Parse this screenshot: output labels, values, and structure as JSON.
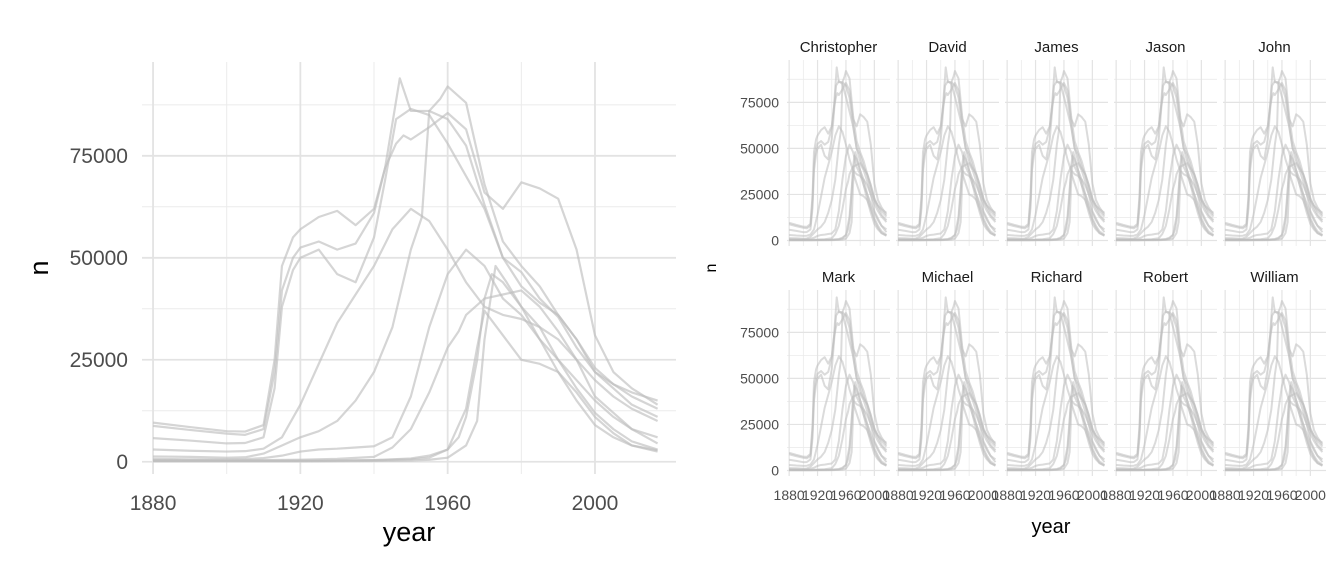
{
  "chart_data": [
    {
      "type": "line",
      "title": "",
      "xlabel": "year",
      "ylabel": "n",
      "xlim": [
        1877,
        2022
      ],
      "ylim": [
        -3000,
        98000
      ],
      "x_ticks": [
        1880,
        1920,
        1960,
        2000
      ],
      "x_tick_labels": [
        "1880",
        "1920",
        "1960",
        "2000"
      ],
      "y_ticks": [
        0,
        25000,
        50000,
        75000
      ],
      "y_tick_labels": [
        "0",
        "25000",
        "50000",
        "75000"
      ],
      "grid": true,
      "legend": "none",
      "line_color": "#bebebe",
      "series": [
        {
          "x": [
            1880,
            1890,
            1900,
            1905,
            1910,
            1913,
            1915,
            1918,
            1920,
            1925,
            1930,
            1935,
            1940,
            1943,
            1946,
            1948,
            1950,
            1955,
            1960,
            1965,
            1970,
            1975,
            1980,
            1985,
            1990,
            1995,
            2000,
            2005,
            2010,
            2017
          ],
          "values": [
            9600,
            8500,
            7500,
            7400,
            9000,
            25000,
            48000,
            55000,
            57000,
            60000,
            61500,
            58000,
            62000,
            72000,
            78000,
            80000,
            79000,
            82000,
            85500,
            81500,
            66000,
            62000,
            68500,
            67000,
            64500,
            52000,
            31000,
            22000,
            18000,
            14000
          ]
        },
        {
          "x": [
            1880,
            1890,
            1900,
            1905,
            1910,
            1913,
            1915,
            1918,
            1920,
            1925,
            1930,
            1935,
            1940,
            1943,
            1947,
            1950,
            1955,
            1960,
            1965,
            1970,
            1975,
            1980,
            1985,
            1990,
            1995,
            2000,
            2005,
            2010,
            2017
          ],
          "values": [
            8800,
            7800,
            6900,
            6600,
            8000,
            22000,
            42000,
            50000,
            52500,
            54000,
            52000,
            53500,
            61000,
            72000,
            94000,
            86000,
            86000,
            84000,
            77500,
            63000,
            50000,
            46500,
            40000,
            35500,
            28000,
            22000,
            19000,
            17000,
            15000
          ]
        },
        {
          "x": [
            1880,
            1890,
            1900,
            1905,
            1910,
            1913,
            1915,
            1918,
            1920,
            1925,
            1930,
            1935,
            1940,
            1943,
            1946,
            1950,
            1955,
            1960,
            1965,
            1970,
            1975,
            1980,
            1985,
            1990,
            1995,
            2000,
            2005,
            2010,
            2017
          ],
          "values": [
            5800,
            5200,
            4500,
            4600,
            6000,
            18000,
            38000,
            47000,
            50000,
            52000,
            46000,
            44000,
            55000,
            69000,
            84000,
            86500,
            85000,
            78000,
            70000,
            62000,
            50000,
            43000,
            39000,
            36000,
            30000,
            22000,
            18000,
            14000,
            11000
          ]
        },
        {
          "x": [
            1880,
            1890,
            1900,
            1905,
            1910,
            1915,
            1920,
            1925,
            1930,
            1935,
            1940,
            1945,
            1950,
            1955,
            1960,
            1965,
            1970,
            1975,
            1980,
            1985,
            1990,
            1995,
            2000,
            2005,
            2010,
            2017
          ],
          "values": [
            3000,
            2700,
            2500,
            2600,
            3200,
            6000,
            14000,
            24000,
            34000,
            41000,
            48000,
            57000,
            62000,
            59000,
            52000,
            44000,
            38000,
            36000,
            35000,
            33000,
            30000,
            25000,
            20000,
            16000,
            13000,
            10000
          ]
        },
        {
          "x": [
            1880,
            1890,
            1900,
            1905,
            1910,
            1915,
            1920,
            1925,
            1930,
            1935,
            1940,
            1945,
            1950,
            1953,
            1955,
            1958,
            1960,
            1965,
            1970,
            1975,
            1980,
            1985,
            1990,
            1995,
            2000,
            2005,
            2010,
            2017
          ],
          "values": [
            1300,
            1200,
            1000,
            1100,
            2000,
            4000,
            6000,
            7500,
            10000,
            15000,
            22000,
            33000,
            52000,
            60000,
            86000,
            89000,
            92000,
            88000,
            68000,
            54000,
            48000,
            43000,
            36000,
            30000,
            23000,
            19000,
            16000,
            13000
          ]
        },
        {
          "x": [
            1880,
            1890,
            1900,
            1905,
            1910,
            1915,
            1920,
            1925,
            1930,
            1935,
            1940,
            1945,
            1950,
            1955,
            1960,
            1965,
            1970,
            1975,
            1980,
            1985,
            1990,
            1995,
            2000,
            2005,
            2010,
            2017
          ],
          "values": [
            700,
            600,
            600,
            650,
            900,
            1500,
            2500,
            3000,
            3200,
            3500,
            3800,
            6000,
            16000,
            33000,
            46000,
            52000,
            48000,
            40000,
            36000,
            30000,
            25000,
            20000,
            15000,
            11000,
            8000,
            6000
          ]
        },
        {
          "x": [
            1880,
            1890,
            1900,
            1910,
            1920,
            1930,
            1940,
            1945,
            1950,
            1955,
            1960,
            1963,
            1965,
            1970,
            1975,
            1980,
            1985,
            1990,
            1995,
            2000,
            2005,
            2010,
            2017
          ],
          "values": [
            400,
            380,
            360,
            400,
            500,
            700,
            1200,
            3500,
            8000,
            17000,
            28000,
            32000,
            36000,
            40000,
            41000,
            42000,
            38000,
            32000,
            25000,
            16000,
            12000,
            8000,
            4500
          ]
        },
        {
          "x": [
            1880,
            1890,
            1900,
            1910,
            1920,
            1930,
            1940,
            1950,
            1955,
            1960,
            1963,
            1965,
            1968,
            1970,
            1972,
            1975,
            1980,
            1985,
            1990,
            1995,
            2000,
            2005,
            2010,
            2017
          ],
          "values": [
            200,
            200,
            200,
            220,
            250,
            300,
            400,
            800,
            1500,
            3000,
            6000,
            11000,
            25000,
            40000,
            46000,
            44000,
            38000,
            30000,
            22000,
            15000,
            9000,
            6000,
            4000,
            2800
          ]
        },
        {
          "x": [
            1880,
            1890,
            1900,
            1910,
            1920,
            1930,
            1940,
            1950,
            1955,
            1960,
            1965,
            1968,
            1970,
            1973,
            1976,
            1980,
            1985,
            1990,
            1995,
            2000,
            2005,
            2010,
            2017
          ],
          "values": [
            100,
            100,
            100,
            100,
            100,
            150,
            200,
            300,
            500,
            1000,
            4000,
            10000,
            30000,
            48000,
            44000,
            38000,
            33000,
            25000,
            18000,
            12000,
            8000,
            5000,
            3000
          ]
        },
        {
          "x": [
            1880,
            1890,
            1900,
            1910,
            1920,
            1930,
            1940,
            1950,
            1955,
            1960,
            1962,
            1965,
            1968,
            1970,
            1975,
            1980,
            1985,
            1990,
            1995,
            2000,
            2005,
            2010,
            2017
          ],
          "values": [
            200,
            200,
            200,
            220,
            250,
            300,
            400,
            600,
            1000,
            3000,
            7000,
            13000,
            28000,
            37000,
            31000,
            25000,
            24000,
            22000,
            17000,
            11000,
            7000,
            4000,
            2500
          ]
        }
      ]
    },
    {
      "type": "line",
      "title": "",
      "xlabel": "year",
      "ylabel": "n",
      "layout": "facet grid 2 rows x 5 columns, same lines drawn in every panel",
      "facets": [
        "Christopher",
        "David",
        "James",
        "Jason",
        "John",
        "Mark",
        "Michael",
        "Richard",
        "Robert",
        "William"
      ],
      "xlim": [
        1877,
        2022
      ],
      "ylim": [
        -3000,
        98000
      ],
      "x_ticks": [
        1880,
        1920,
        1960,
        2000
      ],
      "x_tick_labels": [
        "1880",
        "1920",
        "1960",
        "2000"
      ],
      "y_ticks": [
        0,
        25000,
        50000,
        75000
      ],
      "y_tick_labels": [
        "0",
        "25000",
        "50000",
        "75000"
      ],
      "grid": true,
      "legend": "none",
      "line_color": "#bebebe"
    }
  ]
}
